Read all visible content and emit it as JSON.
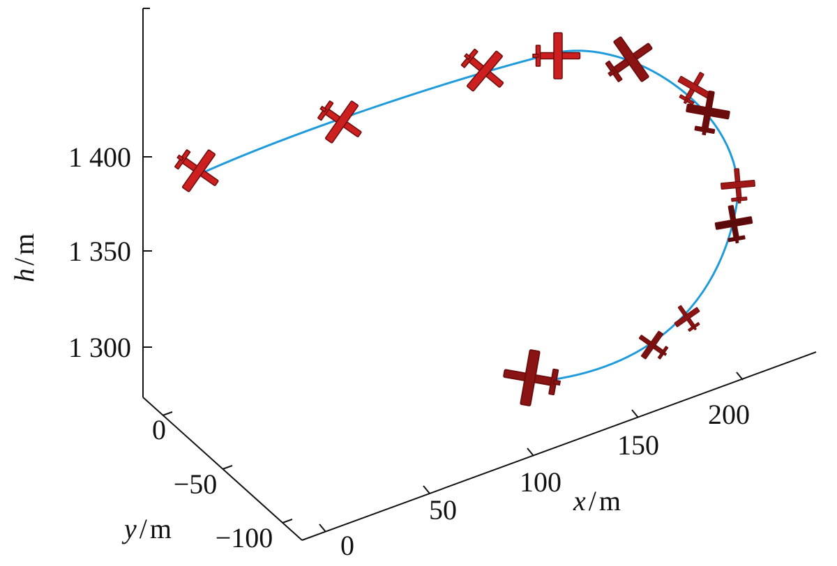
{
  "chart_data": {
    "type": "line3d",
    "x_axis": {
      "var": "x",
      "sep": "/",
      "unit": "m",
      "ticks": [
        {
          "value": 0,
          "label": "0"
        },
        {
          "value": 50,
          "label": "50"
        },
        {
          "value": 100,
          "label": "100"
        },
        {
          "value": 150,
          "label": "150"
        },
        {
          "value": 200,
          "label": "200"
        }
      ]
    },
    "y_axis": {
      "var": "y",
      "sep": "/",
      "unit": "m",
      "ticks": [
        {
          "value": 0,
          "label": "0"
        },
        {
          "value": -50,
          "label": "−50"
        },
        {
          "value": -100,
          "label": "−100"
        }
      ]
    },
    "h_axis": {
      "var": "h",
      "sep": "/",
      "unit": "m",
      "ticks": [
        {
          "value": 1300,
          "label": "1 300"
        },
        {
          "value": 1350,
          "label": "1 350"
        },
        {
          "value": 1400,
          "label": "1 400"
        }
      ]
    },
    "grid": false,
    "series": [
      {
        "kind": "trajectory",
        "color": "#1f9bdc",
        "marker": "aircraft-icon",
        "marker_color": "#cc1f1f",
        "marker_count": 12
      }
    ]
  }
}
